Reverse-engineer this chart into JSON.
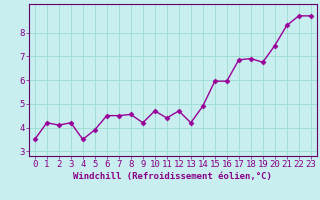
{
  "x": [
    0,
    1,
    2,
    3,
    4,
    5,
    6,
    7,
    8,
    9,
    10,
    11,
    12,
    13,
    14,
    15,
    16,
    17,
    18,
    19,
    20,
    21,
    22,
    23
  ],
  "y": [
    3.5,
    4.2,
    4.1,
    4.2,
    3.5,
    3.9,
    4.5,
    4.5,
    4.55,
    4.2,
    4.7,
    4.4,
    4.7,
    4.2,
    4.9,
    5.95,
    5.95,
    6.85,
    6.9,
    6.75,
    7.45,
    8.3,
    8.7,
    8.7
  ],
  "line_color": "#990099",
  "marker": "D",
  "markersize": 2.5,
  "linewidth": 1.0,
  "xlabel": "Windchill (Refroidissement éolien,°C)",
  "xlim": [
    -0.5,
    23.5
  ],
  "ylim": [
    2.8,
    9.2
  ],
  "yticks": [
    3,
    4,
    5,
    6,
    7,
    8
  ],
  "xticks": [
    0,
    1,
    2,
    3,
    4,
    5,
    6,
    7,
    8,
    9,
    10,
    11,
    12,
    13,
    14,
    15,
    16,
    17,
    18,
    19,
    20,
    21,
    22,
    23
  ],
  "bg_color": "#c8eef0",
  "grid_color": "#99ddcc",
  "text_color": "#880088",
  "xlabel_fontsize": 6.5,
  "tick_fontsize": 6.5,
  "spine_color": "#660066"
}
